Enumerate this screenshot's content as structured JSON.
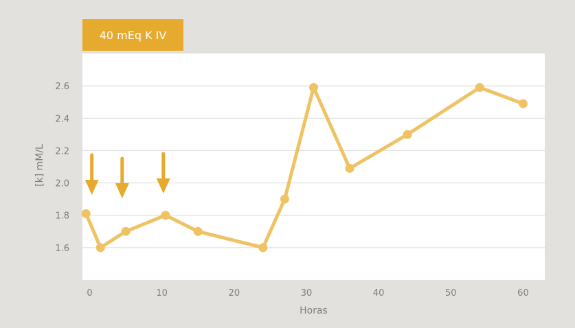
{
  "legend": {
    "label": "40 mEq K IV"
  },
  "colors": {
    "background": "#e3e1de",
    "plot_bg": "#ffffff",
    "grid": "#d9d9d9",
    "line": "#efc364",
    "arrow": "#e6ab2e",
    "legend_bg": "#e6ab2e"
  },
  "chart_data": {
    "type": "line",
    "title": "",
    "xlabel": "Horas",
    "ylabel": "[k] mM/L",
    "xlim": [
      -1,
      63
    ],
    "ylim": [
      1.4,
      2.8
    ],
    "x_ticks": [
      "0",
      "10",
      "20",
      "30",
      "40",
      "50",
      "60"
    ],
    "y_ticks": [
      "1.6",
      "1.8",
      "2.0",
      "2.2",
      "2.4",
      "2.6"
    ],
    "grid": true,
    "series": [
      {
        "x": [
          -0.5,
          1.5,
          5,
          10.5,
          15,
          24,
          27,
          31,
          36,
          44,
          54,
          60
        ],
        "y": [
          1.81,
          1.6,
          1.7,
          1.8,
          1.7,
          1.6,
          1.9,
          2.59,
          2.09,
          2.3,
          2.59,
          2.49
        ]
      }
    ],
    "annotations": {
      "type": "arrow-down",
      "legend_ref": "legend.label",
      "x": [
        0.3,
        4.5,
        10.2
      ]
    }
  }
}
